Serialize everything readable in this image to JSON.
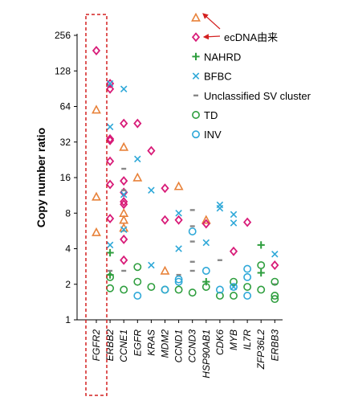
{
  "chart_data": {
    "type": "scatter",
    "ylabel": "Copy number ratio",
    "xlabel": "",
    "y_scale": "log2",
    "ylim": [
      1,
      256
    ],
    "yticks": [
      "1",
      "2",
      "4",
      "8",
      "16",
      "32",
      "64",
      "128",
      "256"
    ],
    "categories": [
      "FGFR2",
      "ERBB2",
      "CCNE1",
      "EGFR",
      "KRAS",
      "MDM2",
      "CCND1",
      "CCND3",
      "HSP90AB1",
      "CDK6",
      "MYB",
      "IL7R",
      "ZFP36L2",
      "ERBB3"
    ],
    "highlighted_category": "FGFR2",
    "grid": false,
    "legend_position": "right",
    "legend_note": "ecDNA由来",
    "series": [
      {
        "name": "ecDNA由来",
        "marker": "triangle",
        "color": "#e8823a",
        "points": [
          {
            "category": "FGFR2",
            "value": 60
          },
          {
            "category": "FGFR2",
            "value": 11
          },
          {
            "category": "FGFR2",
            "value": 5.5
          },
          {
            "category": "CCNE1",
            "value": 29
          },
          {
            "category": "CCNE1",
            "value": 8
          },
          {
            "category": "CCNE1",
            "value": 7
          },
          {
            "category": "CCNE1",
            "value": 6
          },
          {
            "category": "EGFR",
            "value": 16
          },
          {
            "category": "MDM2",
            "value": 2.6
          },
          {
            "category": "CCND1",
            "value": 13.5
          },
          {
            "category": "HSP90AB1",
            "value": 7
          }
        ]
      },
      {
        "name": "ecDNA由来",
        "marker": "diamond",
        "color": "#d81b78",
        "points": [
          {
            "category": "FGFR2",
            "value": 190
          },
          {
            "category": "ERBB2",
            "value": 100
          },
          {
            "category": "ERBB2",
            "value": 90
          },
          {
            "category": "ERBB2",
            "value": 34
          },
          {
            "category": "ERBB2",
            "value": 33
          },
          {
            "category": "ERBB2",
            "value": 22
          },
          {
            "category": "ERBB2",
            "value": 14
          },
          {
            "category": "ERBB2",
            "value": 7.2
          },
          {
            "category": "CCNE1",
            "value": 46
          },
          {
            "category": "CCNE1",
            "value": 15
          },
          {
            "category": "CCNE1",
            "value": 12
          },
          {
            "category": "CCNE1",
            "value": 10
          },
          {
            "category": "CCNE1",
            "value": 9.5
          },
          {
            "category": "CCNE1",
            "value": 4.8
          },
          {
            "category": "CCNE1",
            "value": 3.2
          },
          {
            "category": "EGFR",
            "value": 46
          },
          {
            "category": "KRAS",
            "value": 27
          },
          {
            "category": "MDM2",
            "value": 13
          },
          {
            "category": "MDM2",
            "value": 7
          },
          {
            "category": "CCND1",
            "value": 7
          },
          {
            "category": "HSP90AB1",
            "value": 6.5
          },
          {
            "category": "MYB",
            "value": 3.8
          },
          {
            "category": "IL7R",
            "value": 6.7
          },
          {
            "category": "ERBB3",
            "value": 2.9
          }
        ]
      },
      {
        "name": "NAHRD",
        "marker": "plus",
        "color": "#2e9e3e",
        "points": [
          {
            "category": "ERBB2",
            "value": 3.7
          },
          {
            "category": "ERBB2",
            "value": 2.4
          },
          {
            "category": "HSP90AB1",
            "value": 2.1
          },
          {
            "category": "ZFP36L2",
            "value": 4.3
          },
          {
            "category": "ZFP36L2",
            "value": 2.5
          }
        ]
      },
      {
        "name": "BFBC",
        "marker": "x",
        "color": "#2ea8d8",
        "points": [
          {
            "category": "ERBB2",
            "value": 100
          },
          {
            "category": "ERBB2",
            "value": 43
          },
          {
            "category": "ERBB2",
            "value": 4.3
          },
          {
            "category": "CCNE1",
            "value": 90
          },
          {
            "category": "CCNE1",
            "value": 11.5
          },
          {
            "category": "CCNE1",
            "value": 5.8
          },
          {
            "category": "EGFR",
            "value": 23
          },
          {
            "category": "KRAS",
            "value": 12.5
          },
          {
            "category": "KRAS",
            "value": 2.9
          },
          {
            "category": "CCND1",
            "value": 8
          },
          {
            "category": "CCND1",
            "value": 4
          },
          {
            "category": "HSP90AB1",
            "value": 4.5
          },
          {
            "category": "CDK6",
            "value": 9.4
          },
          {
            "category": "CDK6",
            "value": 8.8
          },
          {
            "category": "MYB",
            "value": 7.8
          },
          {
            "category": "MYB",
            "value": 6.6
          },
          {
            "category": "MYB",
            "value": 1.9
          },
          {
            "category": "ERBB3",
            "value": 3.6
          }
        ]
      },
      {
        "name": "Unclassified SV cluster",
        "marker": "dash",
        "color": "#888888",
        "points": [
          {
            "category": "ERBB2",
            "value": 2.6
          },
          {
            "category": "CCNE1",
            "value": 19
          },
          {
            "category": "CCNE1",
            "value": 12.5
          },
          {
            "category": "CCNE1",
            "value": 2.6
          },
          {
            "category": "CCND1",
            "value": 2.4
          },
          {
            "category": "CCND3",
            "value": 8.5
          },
          {
            "category": "CCND3",
            "value": 6.2
          },
          {
            "category": "CCND3",
            "value": 4.6
          },
          {
            "category": "CCND3",
            "value": 3.1
          },
          {
            "category": "CCND3",
            "value": 2.6
          },
          {
            "category": "CDK6",
            "value": 3.2
          },
          {
            "category": "ERBB3",
            "value": 2
          }
        ]
      },
      {
        "name": "TD",
        "marker": "circle",
        "color": "#2e9e3e",
        "points": [
          {
            "category": "ERBB2",
            "value": 2.3
          },
          {
            "category": "ERBB2",
            "value": 1.85
          },
          {
            "category": "CCNE1",
            "value": 1.8
          },
          {
            "category": "EGFR",
            "value": 2.8
          },
          {
            "category": "EGFR",
            "value": 2.1
          },
          {
            "category": "KRAS",
            "value": 1.9
          },
          {
            "category": "MDM2",
            "value": 1.8
          },
          {
            "category": "CCND1",
            "value": 1.8
          },
          {
            "category": "CCND3",
            "value": 1.7
          },
          {
            "category": "HSP90AB1",
            "value": 1.9
          },
          {
            "category": "CDK6",
            "value": 1.6
          },
          {
            "category": "MYB",
            "value": 2.1
          },
          {
            "category": "MYB",
            "value": 1.6
          },
          {
            "category": "IL7R",
            "value": 1.9
          },
          {
            "category": "ZFP36L2",
            "value": 2.9
          },
          {
            "category": "ZFP36L2",
            "value": 1.8
          },
          {
            "category": "ERBB3",
            "value": 2.1
          },
          {
            "category": "ERBB3",
            "value": 1.6
          },
          {
            "category": "ERBB3",
            "value": 1.5
          }
        ]
      },
      {
        "name": "INV",
        "marker": "circle",
        "color": "#2ea8d8",
        "points": [
          {
            "category": "EGFR",
            "value": 1.6
          },
          {
            "category": "MDM2",
            "value": 1.8
          },
          {
            "category": "CCND1",
            "value": 2.2
          },
          {
            "category": "CCND1",
            "value": 2.1
          },
          {
            "category": "CCND3",
            "value": 5.6
          },
          {
            "category": "HSP90AB1",
            "value": 2.6
          },
          {
            "category": "CDK6",
            "value": 1.8
          },
          {
            "category": "MYB",
            "value": 1.9
          },
          {
            "category": "IL7R",
            "value": 2.7
          },
          {
            "category": "IL7R",
            "value": 2.3
          },
          {
            "category": "IL7R",
            "value": 1.6
          }
        ]
      }
    ],
    "legend": [
      {
        "label": "",
        "marker": "triangle",
        "color": "#e8823a"
      },
      {
        "label": "ecDNA由来",
        "marker": "diamond",
        "color": "#d81b78"
      },
      {
        "label": "NAHRD",
        "marker": "plus",
        "color": "#2e9e3e"
      },
      {
        "label": "BFBC",
        "marker": "x",
        "color": "#2ea8d8"
      },
      {
        "label": "Unclassified SV cluster",
        "marker": "dash",
        "color": "#888888"
      },
      {
        "label": "TD",
        "marker": "circle",
        "color": "#2e9e3e"
      },
      {
        "label": "INV",
        "marker": "circle",
        "color": "#2ea8d8"
      }
    ],
    "colors": {
      "highlight_box": "#d42020",
      "arrow": "#d42020",
      "axis": "#000000"
    }
  }
}
